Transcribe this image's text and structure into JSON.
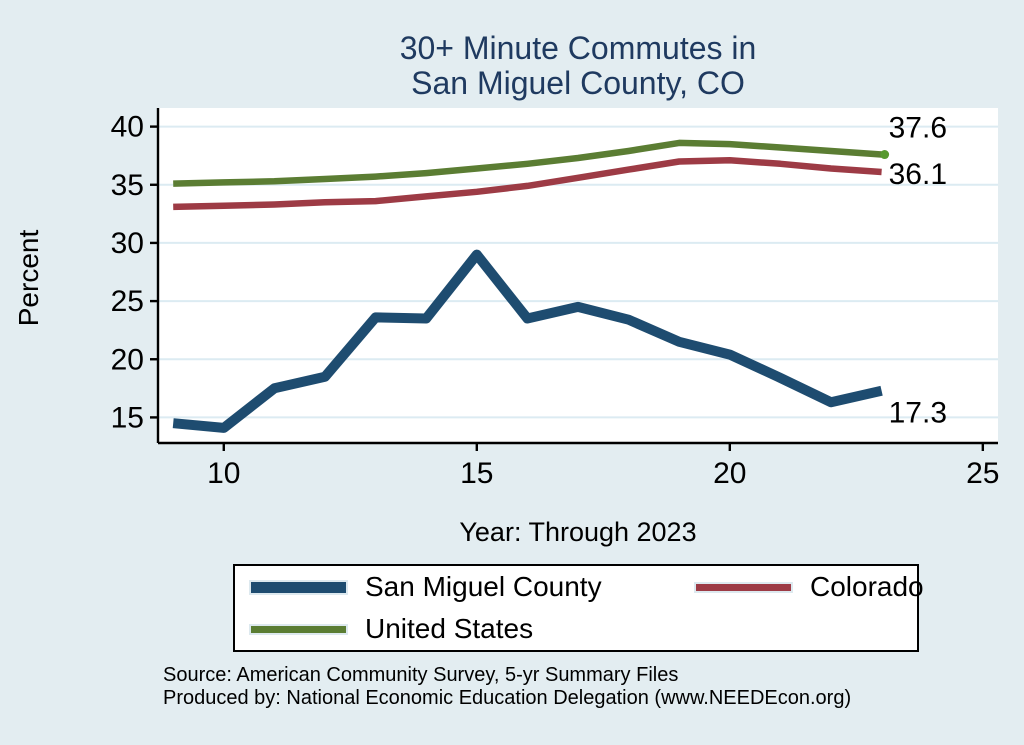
{
  "title": {
    "line1": "30+ Minute Commutes in",
    "line2": "San Miguel County, CO"
  },
  "axes": {
    "y_label": "Percent",
    "x_label": "Year: Through 2023",
    "y_ticks": [
      40,
      35,
      30,
      25,
      20,
      15
    ],
    "x_ticks": [
      10,
      15,
      20,
      25
    ]
  },
  "legend": {
    "entries": [
      {
        "label": "San Miguel County",
        "color": "#1e4c70",
        "swatch_height": 11
      },
      {
        "label": "Colorado",
        "color": "#9d3b45",
        "swatch_height": 7
      },
      {
        "label": "United States",
        "color": "#5b7d33",
        "swatch_height": 7
      }
    ]
  },
  "source": {
    "line1": "Source: American Community Survey, 5-yr Summary Files",
    "line2": "Produced by: National Economic Education Delegation (www.NEEDEcon.org)"
  },
  "colors": {
    "background": "#e3edf1",
    "plot_background": "#ffffff",
    "gridline": "#dcebf2",
    "axis": "#000000",
    "title_text": "#1f3a60",
    "san_miguel_line": "#1e4c70",
    "colorado_line": "#9d3b45",
    "us_line": "#5b7d33",
    "end_marker": "#57992e"
  },
  "chart_data": {
    "type": "line",
    "title": "30+ Minute Commutes in San Miguel County, CO",
    "xlabel": "Year: Through 2023",
    "ylabel": "Percent",
    "grid": "horizontal",
    "legend_position": "bottom",
    "xlim": [
      8.7,
      25.3
    ],
    "ylim": [
      12.8,
      41.6
    ],
    "x": [
      9,
      10,
      11,
      12,
      13,
      14,
      15,
      16,
      17,
      18,
      19,
      20,
      21,
      22,
      23
    ],
    "series": [
      {
        "name": "San Miguel County",
        "color": "#1e4c70",
        "line_width": 10,
        "values": [
          14.5,
          14.1,
          17.5,
          18.5,
          23.6,
          23.5,
          29.0,
          23.5,
          24.5,
          23.4,
          21.5,
          20.4,
          18.4,
          16.3,
          17.3
        ],
        "end_label": "17.3"
      },
      {
        "name": "Colorado",
        "color": "#9d3b45",
        "line_width": 6.5,
        "values": [
          33.1,
          33.2,
          33.3,
          33.5,
          33.6,
          34.0,
          34.4,
          34.9,
          35.6,
          36.3,
          37.0,
          37.1,
          36.8,
          36.4,
          36.1
        ],
        "end_label": "36.1"
      },
      {
        "name": "United States",
        "color": "#5b7d33",
        "line_width": 6.5,
        "values": [
          35.1,
          35.2,
          35.3,
          35.5,
          35.7,
          36.0,
          36.4,
          36.8,
          37.3,
          37.9,
          38.6,
          38.5,
          38.2,
          37.9,
          37.6
        ],
        "end_label": "37.6",
        "end_marker": true
      }
    ]
  }
}
